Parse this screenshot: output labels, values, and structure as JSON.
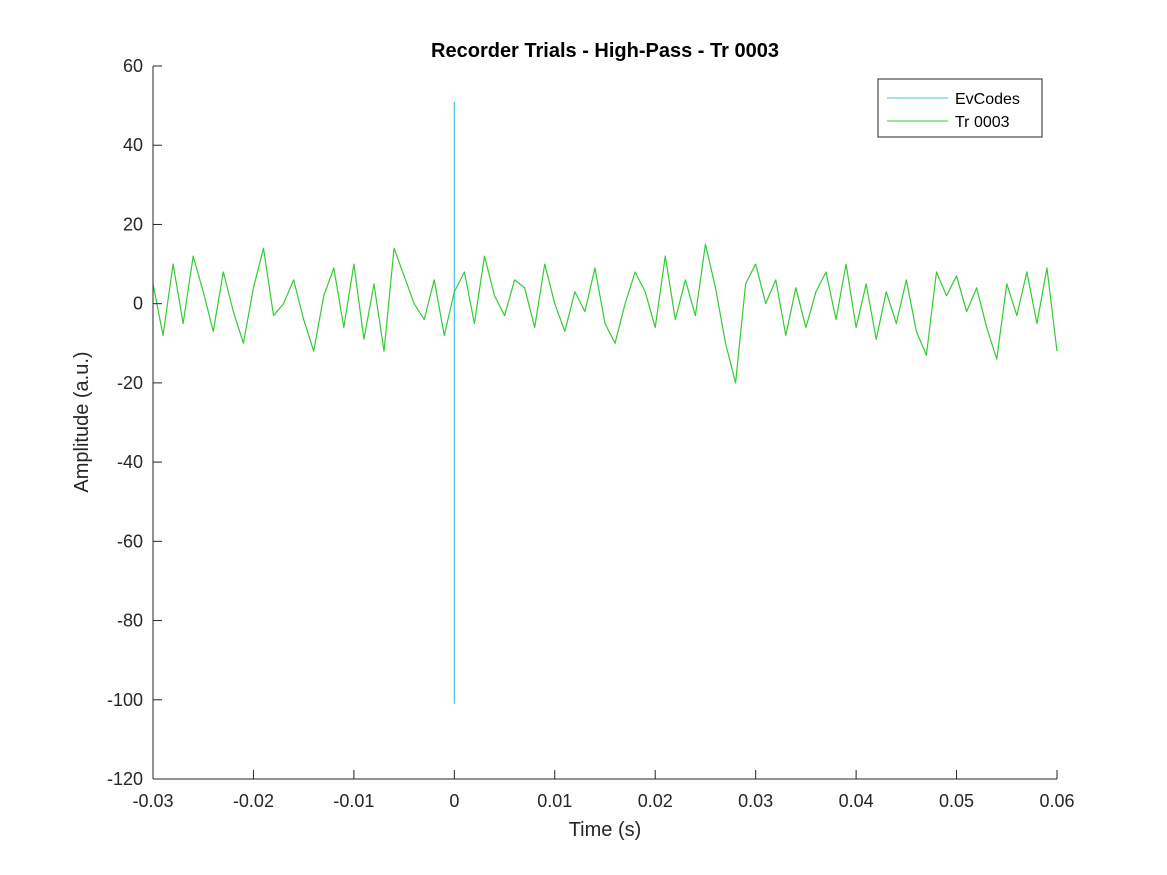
{
  "chart_data": {
    "type": "line",
    "title": "Recorder Trials - High-Pass - Tr 0003",
    "xlabel": "Time (s)",
    "ylabel": "Amplitude (a.u.)",
    "xlim": [
      -0.03,
      0.06
    ],
    "ylim": [
      -120,
      60
    ],
    "xticks": [
      -0.03,
      -0.02,
      -0.01,
      0,
      0.01,
      0.02,
      0.03,
      0.04,
      0.05,
      0.06
    ],
    "xtick_labels": [
      "-0.03",
      "-0.02",
      "-0.01",
      "0",
      "0.01",
      "0.02",
      "0.03",
      "0.04",
      "0.05",
      "0.06"
    ],
    "yticks": [
      60,
      40,
      20,
      0,
      -20,
      -40,
      -60,
      -80,
      -100,
      -120
    ],
    "ytick_labels": [
      "60",
      "40",
      "20",
      "0",
      "-20",
      "-40",
      "-60",
      "-80",
      "-100",
      "-120"
    ],
    "grid": false,
    "legend_position": "top-right",
    "series": [
      {
        "name": "EvCodes",
        "color": "#4DBEEE",
        "x": [
          0,
          0
        ],
        "y": [
          51,
          -101
        ]
      },
      {
        "name": "Tr 0003",
        "color": "#33CC33",
        "x": [
          -0.03,
          -0.029,
          -0.028,
          -0.027,
          -0.026,
          -0.025,
          -0.024,
          -0.023,
          -0.022,
          -0.021,
          -0.02,
          -0.019,
          -0.018,
          -0.017,
          -0.016,
          -0.015,
          -0.014,
          -0.013,
          -0.012,
          -0.011,
          -0.01,
          -0.009,
          -0.008,
          -0.007,
          -0.006,
          -0.005,
          -0.004,
          -0.003,
          -0.002,
          -0.001,
          0,
          0.001,
          0.002,
          0.003,
          0.004,
          0.005,
          0.006,
          0.007,
          0.008,
          0.009,
          0.01,
          0.011,
          0.012,
          0.013,
          0.014,
          0.015,
          0.016,
          0.017,
          0.018,
          0.019,
          0.02,
          0.021,
          0.022,
          0.023,
          0.024,
          0.025,
          0.026,
          0.027,
          0.028,
          0.029,
          0.03,
          0.031,
          0.032,
          0.033,
          0.034,
          0.035,
          0.036,
          0.037,
          0.038,
          0.039,
          0.04,
          0.041,
          0.042,
          0.043,
          0.044,
          0.045,
          0.046,
          0.047,
          0.048,
          0.049,
          0.05,
          0.051,
          0.052,
          0.053,
          0.054,
          0.055,
          0.056,
          0.057,
          0.058,
          0.059,
          0.06
        ],
        "y": [
          5,
          -8,
          10,
          -5,
          12,
          3,
          -7,
          8,
          -2,
          -10,
          4,
          14,
          -3,
          0,
          6,
          -4,
          -12,
          2,
          9,
          -6,
          10,
          -9,
          5,
          -12,
          14,
          7,
          0,
          -4,
          6,
          -8,
          3,
          8,
          -5,
          12,
          2,
          -3,
          6,
          4,
          -6,
          10,
          0,
          -7,
          3,
          -2,
          9,
          -5,
          -10,
          0,
          8,
          3,
          -6,
          12,
          -4,
          6,
          -3,
          15,
          4,
          -10,
          -20,
          5,
          10,
          0,
          6,
          -8,
          4,
          -6,
          3,
          8,
          -4,
          10,
          -6,
          5,
          -9,
          3,
          -5,
          6,
          -7,
          -13,
          8,
          2,
          7,
          -2,
          4,
          -6,
          -14,
          5,
          -3,
          8,
          -5,
          9,
          -12
        ]
      }
    ]
  }
}
